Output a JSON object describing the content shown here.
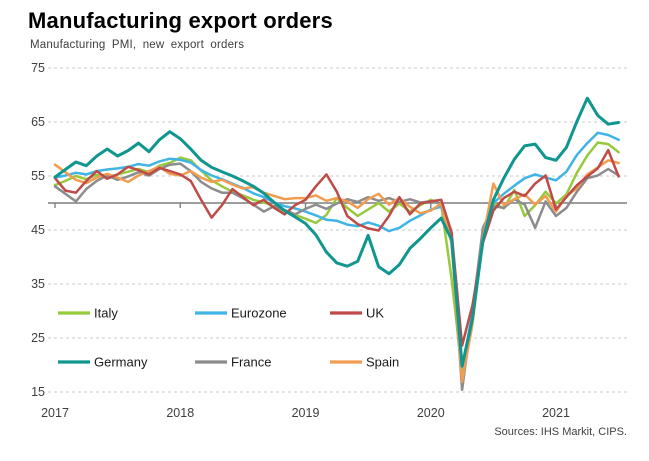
{
  "header": {
    "title": "Manufacturing export orders",
    "subtitle": "Manufacturing PMI, new export orders"
  },
  "source": "Sources: IHS Markit, CIPS.",
  "chart_data": {
    "type": "line",
    "title": "Manufacturing export orders",
    "subtitle": "Manufacturing PMI, new export orders",
    "x_unit": "month",
    "x_start": "2017-01",
    "x_end": "2021-07",
    "x_tick_labels": [
      "2017",
      "2018",
      "2019",
      "2020",
      "2021"
    ],
    "y_ticks": [
      75,
      65,
      55,
      45,
      35,
      25,
      15
    ],
    "ylim": [
      15,
      75
    ],
    "reference_line": 50,
    "grid": "dashed-horizontal",
    "legend_position": "inside-bottom-left",
    "legend_rows": [
      [
        "Italy",
        "Eurozone",
        "UK"
      ],
      [
        "Germany",
        "France",
        "Spain"
      ]
    ],
    "draw_order": [
      "Italy",
      "Eurozone",
      "France",
      "Spain",
      "UK",
      "Germany"
    ],
    "series": [
      {
        "name": "Italy",
        "color": "#97C93D",
        "width": 2.5,
        "values": [
          53.3,
          54.1,
          55.0,
          54.4,
          55.2,
          54.7,
          55.3,
          55.8,
          56.3,
          55.7,
          56.9,
          57.4,
          58.4,
          57.9,
          56.0,
          54.2,
          53.1,
          52.1,
          51.4,
          50.6,
          50.1,
          49.4,
          48.5,
          47.8,
          47.1,
          46.3,
          47.8,
          50.9,
          49.1,
          47.6,
          48.8,
          50.0,
          48.4,
          49.9,
          48.4,
          49.6,
          50.6,
          49.7,
          36.0,
          18.6,
          29.0,
          44.0,
          50.0,
          49.0,
          52.4,
          47.6,
          49.6,
          52.1,
          49.9,
          51.6,
          55.6,
          58.8,
          61.2,
          60.9,
          59.4
        ]
      },
      {
        "name": "Eurozone",
        "color": "#3FB4E5",
        "width": 2.5,
        "values": [
          54.7,
          55.1,
          55.6,
          55.3,
          55.9,
          56.2,
          56.4,
          56.7,
          57.2,
          56.9,
          57.7,
          58.2,
          58.0,
          57.5,
          56.1,
          55.1,
          54.4,
          53.6,
          52.8,
          51.8,
          51.1,
          50.1,
          49.4,
          49.0,
          48.4,
          47.7,
          46.9,
          46.7,
          46.0,
          45.7,
          46.4,
          45.8,
          44.8,
          45.4,
          46.7,
          47.7,
          48.8,
          49.3,
          44.1,
          19.5,
          29.6,
          44.3,
          50.0,
          51.7,
          53.2,
          54.6,
          55.3,
          54.7,
          54.2,
          55.8,
          58.9,
          61.1,
          63.0,
          62.6,
          61.7
        ]
      },
      {
        "name": "UK",
        "color": "#BE4B48",
        "width": 2.5,
        "values": [
          54.6,
          52.3,
          51.9,
          54.1,
          55.9,
          54.5,
          55.3,
          56.7,
          56.1,
          55.3,
          56.5,
          55.9,
          55.3,
          54.1,
          50.6,
          47.3,
          49.6,
          52.6,
          51.1,
          49.6,
          50.6,
          49.1,
          47.9,
          49.6,
          50.6,
          53.1,
          55.3,
          52.1,
          47.6,
          46.1,
          45.3,
          44.9,
          47.6,
          51.1,
          47.9,
          49.9,
          50.3,
          50.6,
          44.6,
          23.6,
          31.1,
          42.6,
          48.6,
          50.9,
          52.1,
          51.3,
          53.6,
          55.1,
          48.8,
          51.1,
          53.3,
          54.9,
          56.4,
          59.8,
          54.9
        ]
      },
      {
        "name": "Germany",
        "color": "#0F968F",
        "width": 3,
        "values": [
          54.8,
          56.2,
          57.6,
          56.9,
          58.7,
          60.0,
          58.7,
          59.7,
          61.1,
          59.5,
          61.7,
          63.2,
          61.9,
          60.0,
          57.9,
          56.6,
          55.8,
          55.0,
          54.1,
          53.1,
          51.8,
          50.1,
          48.6,
          47.4,
          46.2,
          44.1,
          40.9,
          38.9,
          38.3,
          39.2,
          44.0,
          38.2,
          36.9,
          38.6,
          41.6,
          43.4,
          45.4,
          47.2,
          43.2,
          19.8,
          28.6,
          43.0,
          50.6,
          54.6,
          58.1,
          60.6,
          60.9,
          58.4,
          57.9,
          60.3,
          65.1,
          69.4,
          66.2,
          64.6,
          64.9
        ]
      },
      {
        "name": "France",
        "color": "#8C8C8C",
        "width": 2.5,
        "values": [
          53.1,
          51.7,
          50.3,
          52.6,
          54.1,
          55.1,
          54.3,
          54.9,
          55.7,
          55.1,
          56.3,
          57.1,
          57.3,
          55.9,
          53.9,
          52.7,
          51.9,
          51.9,
          50.9,
          49.7,
          48.4,
          49.4,
          48.7,
          47.9,
          48.9,
          49.7,
          48.9,
          49.9,
          50.7,
          50.2,
          51.1,
          50.4,
          50.9,
          50.2,
          50.7,
          50.1,
          50.3,
          49.9,
          43.6,
          15.4,
          29.9,
          45.4,
          49.4,
          49.1,
          50.7,
          49.7,
          45.4,
          50.3,
          47.6,
          49.1,
          52.1,
          54.6,
          55.1,
          56.3,
          55.1
        ]
      },
      {
        "name": "Spain",
        "color": "#F29C51",
        "width": 2.5,
        "values": [
          57.1,
          55.7,
          54.3,
          53.7,
          54.7,
          55.4,
          54.7,
          53.9,
          55.1,
          55.9,
          56.7,
          55.4,
          55.1,
          55.9,
          54.7,
          53.9,
          54.3,
          53.4,
          52.7,
          52.9,
          51.9,
          51.3,
          50.7,
          50.9,
          50.9,
          51.4,
          50.4,
          50.9,
          50.3,
          49.1,
          50.7,
          51.7,
          49.7,
          50.9,
          49.3,
          48.1,
          48.6,
          49.9,
          42.6,
          16.9,
          27.6,
          43.4,
          53.6,
          49.6,
          50.7,
          51.6,
          49.7,
          51.3,
          48.4,
          51.3,
          52.7,
          55.3,
          56.6,
          57.9,
          57.4
        ]
      }
    ],
    "style": {
      "gridline_color": "#C9C9C9",
      "reference_line_color": "#7F7F7F",
      "tick_label_color": "#3F3F3F",
      "legend_label_color": "#1A1A1A"
    }
  }
}
